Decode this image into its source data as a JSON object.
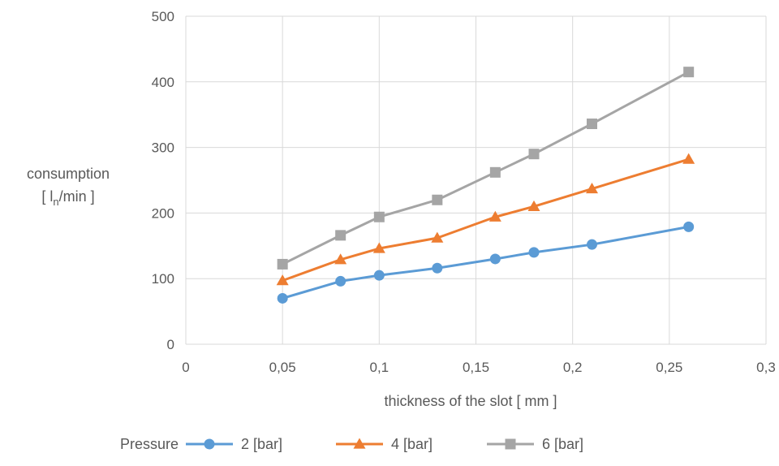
{
  "chart_data": {
    "type": "line",
    "title": "",
    "xlabel": "thickness of the slot [ mm ]",
    "ylabel_line1": "consumption",
    "ylabel_line2_prefix": "[ l",
    "ylabel_line2_subscript": "n",
    "ylabel_line2_suffix": "/min ]",
    "xlim": [
      0,
      0.3
    ],
    "ylim": [
      0,
      500
    ],
    "x_ticks": [
      0,
      0.05,
      0.1,
      0.15,
      0.2,
      0.25,
      0.3
    ],
    "x_tick_labels": [
      "0",
      "0,05",
      "0,1",
      "0,15",
      "0,2",
      "0,25",
      "0,3"
    ],
    "y_ticks": [
      0,
      100,
      200,
      300,
      400,
      500
    ],
    "y_tick_labels": [
      "0",
      "100",
      "200",
      "300",
      "400",
      "500"
    ],
    "grid": true,
    "legend_position": "bottom",
    "legend_title": "Pressure",
    "x": [
      0.05,
      0.08,
      0.1,
      0.13,
      0.16,
      0.18,
      0.21,
      0.26
    ],
    "series": [
      {
        "name": "2 [bar]",
        "marker": "circle",
        "color": "#5B9BD5",
        "values": [
          70,
          96,
          105,
          116,
          130,
          140,
          152,
          179
        ]
      },
      {
        "name": "4 [bar]",
        "marker": "triangle",
        "color": "#ED7D31",
        "values": [
          97,
          129,
          146,
          162,
          194,
          210,
          237,
          282
        ]
      },
      {
        "name": "6 [bar]",
        "marker": "square",
        "color": "#A5A5A5",
        "values": [
          122,
          166,
          194,
          220,
          262,
          290,
          336,
          415
        ]
      }
    ]
  }
}
